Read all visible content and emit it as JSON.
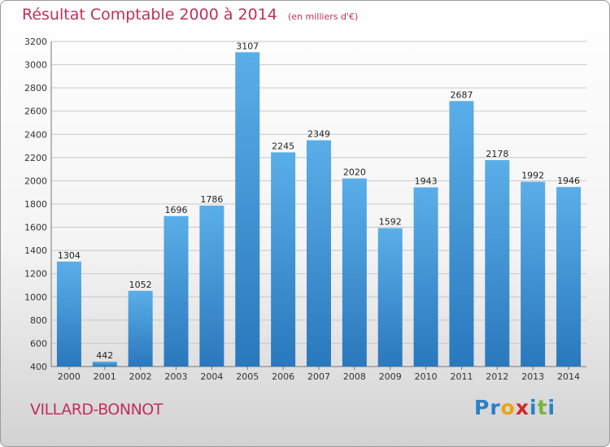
{
  "chart_data": {
    "type": "bar",
    "title": "Résultat Comptable 2000 à 2014",
    "unit": "(en milliers d'€)",
    "categories": [
      "2000",
      "2001",
      "2002",
      "2003",
      "2004",
      "2005",
      "2006",
      "2007",
      "2008",
      "2009",
      "2010",
      "2011",
      "2012",
      "2013",
      "2014"
    ],
    "values": [
      1304,
      442,
      1052,
      1696,
      1786,
      3107,
      2245,
      2349,
      2020,
      1592,
      1943,
      2687,
      2178,
      1992,
      1946
    ],
    "ylim": [
      400,
      3200
    ],
    "yticks": [
      400,
      600,
      800,
      1000,
      1200,
      1400,
      1600,
      1800,
      2000,
      2200,
      2400,
      2600,
      2800,
      3000,
      3200
    ],
    "grid": true,
    "bar_color": "#3d8fd1",
    "xlabel": "",
    "ylabel": ""
  },
  "footer": {
    "city": "VILLARD-BONNOT",
    "logo_letters": [
      "P",
      "r",
      "o",
      "x",
      "i",
      "t",
      "i"
    ],
    "logo_colors": [
      "#2c7fc4",
      "#2c7fc4",
      "#e8a317",
      "#d4262e",
      "#2c7fc4",
      "#7cb342",
      "#2c7fc4"
    ]
  }
}
